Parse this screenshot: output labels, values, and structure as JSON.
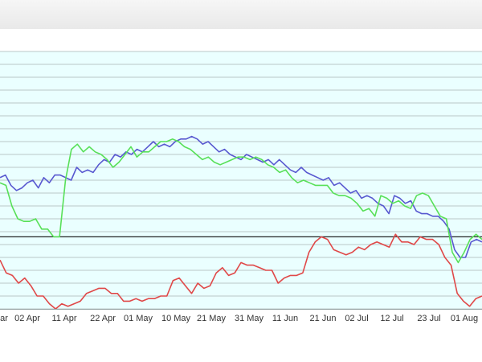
{
  "chart_data": {
    "type": "line",
    "grid": true,
    "legend": "none",
    "x_tick_labels": [
      "ar",
      "02 Apr",
      "11 Apr",
      "22 Apr",
      "01 May",
      "10 May",
      "21 May",
      "31 May",
      "11 Jun",
      "21 Jun",
      "02 Jul",
      "12 Jul",
      "23 Jul",
      "01 Aug"
    ],
    "colors": {
      "blue_series": "#5858d0",
      "green_series": "#58e058",
      "red_series": "#e04848",
      "reference_line": "#222222",
      "plot_background": "#eaffff",
      "gridline": "#b9c7c7"
    },
    "y_range": [
      0,
      100
    ],
    "reference_value": 28,
    "series": [
      {
        "values": [
          51,
          52,
          48,
          46,
          47,
          49,
          50,
          47,
          51,
          49,
          52,
          52,
          51,
          50,
          55,
          53,
          54,
          53,
          56,
          58,
          57,
          60,
          59,
          61,
          60,
          62,
          61,
          63,
          65,
          63,
          64,
          63,
          65,
          66,
          66,
          67,
          66,
          64,
          65,
          63,
          61,
          62,
          60,
          59,
          58,
          60,
          59,
          58,
          57,
          58,
          56,
          58,
          56,
          54,
          53,
          55,
          53,
          52,
          51,
          50,
          51,
          48,
          49,
          47,
          45,
          46,
          43,
          44,
          43,
          41,
          40,
          37,
          44,
          43,
          41,
          42,
          38,
          37,
          37,
          36,
          36,
          34,
          31,
          23,
          20,
          20,
          26,
          27,
          26
        ]
      },
      {
        "values": [
          49,
          48,
          40,
          35,
          34,
          34,
          35,
          31,
          31,
          28,
          28,
          50,
          62,
          64,
          61,
          63,
          61,
          60,
          58,
          55,
          57,
          60,
          63,
          59,
          61,
          61,
          63,
          65,
          65,
          66,
          65,
          63,
          62,
          60,
          58,
          59,
          57,
          56,
          57,
          58,
          59,
          59,
          58,
          59,
          58,
          56,
          55,
          53,
          54,
          51,
          49,
          50,
          49,
          48,
          48,
          48,
          45,
          44,
          44,
          43,
          41,
          38,
          39,
          36,
          44,
          43,
          41,
          42,
          40,
          39,
          44,
          45,
          44,
          40,
          36,
          35,
          22,
          18,
          22,
          27,
          29,
          27
        ]
      },
      {
        "values": [
          19,
          14,
          13,
          10,
          12,
          9,
          5,
          5,
          2,
          0,
          2,
          1,
          2,
          3,
          6,
          7,
          8,
          8,
          6,
          6,
          3,
          3,
          4,
          3,
          4,
          4,
          5,
          5,
          11,
          12,
          9,
          6,
          10,
          8,
          9,
          14,
          16,
          13,
          14,
          18,
          17,
          17,
          16,
          15,
          15,
          10,
          12,
          13,
          13,
          14,
          22,
          26,
          28,
          27,
          23,
          22,
          21,
          22,
          24,
          23,
          25,
          26,
          25,
          24,
          29,
          26,
          26,
          25,
          28,
          27,
          27,
          25,
          20,
          17,
          6,
          3,
          1,
          4,
          5
        ]
      }
    ]
  }
}
